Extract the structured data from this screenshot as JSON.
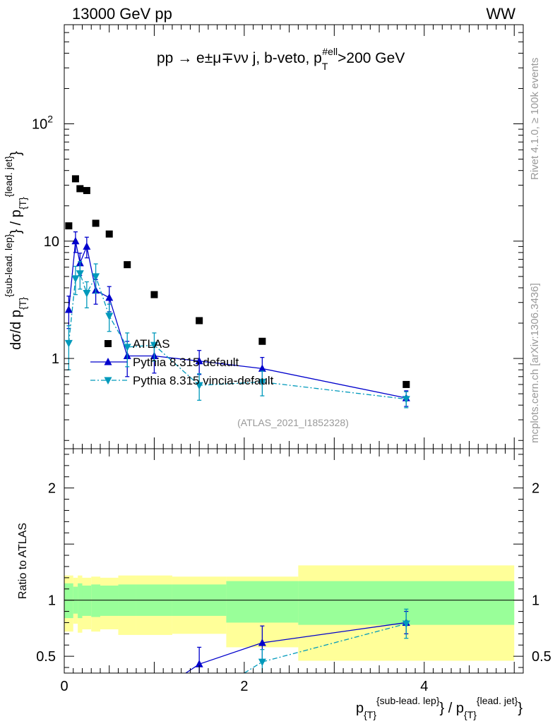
{
  "header": {
    "left": "13000 GeV pp",
    "right": "WW",
    "process": "pp  →  e±μ∓νν j, b-veto, pT#ell>200 GeV",
    "process_main": "pp  →  e±μ∓νν j, b-veto, p",
    "process_sub": "T",
    "process_sup": "#ell",
    "process_tail": ">200 GeV"
  },
  "side_labels": {
    "rivet": "Rivet 4.1.0, ≥ 100k events",
    "mcplots": "mcplots.cern.ch [arXiv:1306.3436]"
  },
  "colors": {
    "atlas": "#000000",
    "pythia_default": "#0000cc",
    "pythia_vincia": "#0099bb",
    "band_inner": "#99ff99",
    "band_outer": "#ffff99"
  },
  "chart_data": [
    {
      "type": "scatter",
      "title": "",
      "watermark": "(ATLAS_2021_I1852328)",
      "xlabel": "p{T}{sub-lead. lep} / p{T}{lead. jet}",
      "ylabel": "dσ/d p{T}{sub-lead. lep} / p{T}{lead. jet}",
      "yscale": "log",
      "xlim": [
        0,
        5.1
      ],
      "ylim": [
        0.17,
        700
      ],
      "yticks": [
        1,
        10,
        100
      ],
      "ytick_labels": [
        "1",
        "10",
        "10²"
      ],
      "legend": [
        "ATLAS",
        "Pythia 8.315 default",
        "Pythia 8.315 vincia-default"
      ],
      "series": [
        {
          "name": "ATLAS",
          "marker": "square",
          "x": [
            0.05,
            0.125,
            0.175,
            0.25,
            0.35,
            0.5,
            0.7,
            1.0,
            1.5,
            2.2,
            3.8
          ],
          "y": [
            13.5,
            34,
            28,
            27,
            14.2,
            11.5,
            6.3,
            3.5,
            2.1,
            1.4,
            0.6
          ]
        },
        {
          "name": "Pythia 8.315 default",
          "marker": "triangle-up",
          "x": [
            0.05,
            0.125,
            0.175,
            0.25,
            0.35,
            0.5,
            0.7,
            1.0,
            1.5,
            2.2,
            3.8
          ],
          "y": [
            2.6,
            10.0,
            6.5,
            9.0,
            3.8,
            3.3,
            1.05,
            1.05,
            0.95,
            0.82,
            0.46
          ],
          "err": [
            0.8,
            2.0,
            1.4,
            1.8,
            0.9,
            0.8,
            0.35,
            0.3,
            0.22,
            0.2,
            0.07
          ]
        },
        {
          "name": "Pythia 8.315 vincia-default",
          "marker": "triangle-down",
          "x": [
            0.05,
            0.125,
            0.175,
            0.25,
            0.35,
            0.5,
            0.7,
            1.0,
            1.5,
            2.2,
            3.8
          ],
          "y": [
            1.35,
            4.8,
            5.3,
            3.6,
            5.0,
            2.3,
            1.25,
            1.3,
            0.59,
            0.63,
            0.45
          ],
          "err": [
            0.55,
            1.3,
            1.4,
            0.9,
            1.4,
            0.6,
            0.4,
            0.35,
            0.15,
            0.15,
            0.07
          ]
        }
      ]
    },
    {
      "type": "line",
      "title": "",
      "xlabel": "p{T}{sub-lead. lep} / p{T}{lead. jet}",
      "ylabel": "Ratio to ATLAS",
      "xlim": [
        0,
        5.1
      ],
      "ylim": [
        0.35,
        2.35
      ],
      "xticks": [
        0,
        2,
        4
      ],
      "xtick_labels": [
        "0",
        "2",
        "4"
      ],
      "yticks": [
        0.5,
        1,
        2
      ],
      "ytick_labels": [
        "0.5",
        "1",
        "2"
      ],
      "bands": [
        {
          "x0": 0.0,
          "x1": 0.1,
          "inner_lo": 0.84,
          "inner_hi": 1.15,
          "outer_lo": 0.72,
          "outer_hi": 1.22
        },
        {
          "x0": 0.1,
          "x1": 0.15,
          "inner_lo": 0.88,
          "inner_hi": 1.12,
          "outer_lo": 0.79,
          "outer_hi": 1.2
        },
        {
          "x0": 0.15,
          "x1": 0.2,
          "inner_lo": 0.84,
          "inner_hi": 1.15,
          "outer_lo": 0.71,
          "outer_hi": 1.22
        },
        {
          "x0": 0.2,
          "x1": 0.3,
          "inner_lo": 0.86,
          "inner_hi": 1.13,
          "outer_lo": 0.74,
          "outer_hi": 1.2
        },
        {
          "x0": 0.3,
          "x1": 0.4,
          "inner_lo": 0.85,
          "inner_hi": 1.14,
          "outer_lo": 0.72,
          "outer_hi": 1.21
        },
        {
          "x0": 0.4,
          "x1": 0.6,
          "inner_lo": 0.86,
          "inner_hi": 1.13,
          "outer_lo": 0.74,
          "outer_hi": 1.2
        },
        {
          "x0": 0.6,
          "x1": 0.8,
          "inner_lo": 0.86,
          "inner_hi": 1.14,
          "outer_lo": 0.69,
          "outer_hi": 1.22
        },
        {
          "x0": 0.8,
          "x1": 1.2,
          "inner_lo": 0.86,
          "inner_hi": 1.14,
          "outer_lo": 0.69,
          "outer_hi": 1.22
        },
        {
          "x0": 1.2,
          "x1": 1.8,
          "inner_lo": 0.86,
          "inner_hi": 1.14,
          "outer_lo": 0.7,
          "outer_hi": 1.21
        },
        {
          "x0": 1.8,
          "x1": 2.6,
          "inner_lo": 0.8,
          "inner_hi": 1.17,
          "outer_lo": 0.58,
          "outer_hi": 1.21
        },
        {
          "x0": 2.6,
          "x1": 5.0,
          "inner_lo": 0.78,
          "inner_hi": 1.17,
          "outer_lo": 0.46,
          "outer_hi": 1.31
        }
      ],
      "series": [
        {
          "name": "Pythia 8.315 default",
          "marker": "triangle-up",
          "x": [
            1.5,
            2.2,
            3.8
          ],
          "y": [
            0.43,
            0.62,
            0.8
          ],
          "err": [
            0.15,
            0.15,
            0.1
          ],
          "line_from": {
            "x": 1.35,
            "y": 0.35
          }
        },
        {
          "name": "Pythia 8.315 vincia-default",
          "marker": "triangle-down",
          "x": [
            2.2,
            3.8
          ],
          "y": [
            0.45,
            0.79
          ],
          "err": [
            0.11,
            0.13
          ],
          "line_from": {
            "x": 2.0,
            "y": 0.35
          }
        }
      ]
    }
  ]
}
